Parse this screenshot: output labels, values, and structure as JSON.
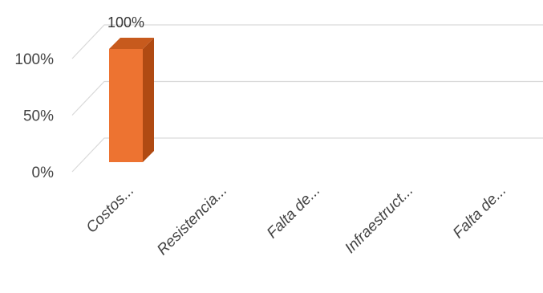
{
  "chart_data": {
    "type": "bar",
    "categories": [
      "Costos...",
      "Resistencia...",
      "Falta de...",
      "Infraestruct...",
      "Falta de..."
    ],
    "values": [
      100,
      0,
      0,
      0,
      0
    ],
    "data_labels": [
      "100%",
      "",
      "",
      "",
      ""
    ],
    "yticks": [
      0,
      50,
      100
    ],
    "ytick_labels": [
      "0%",
      "50%",
      "100%"
    ],
    "ylim": [
      0,
      100
    ],
    "grid": true,
    "title": "",
    "xlabel": "",
    "ylabel": "",
    "bar_color": "#ed7331",
    "bar_side_color": "#b04a12",
    "bar_top_color": "#c75a1d",
    "style": "3d-column"
  }
}
